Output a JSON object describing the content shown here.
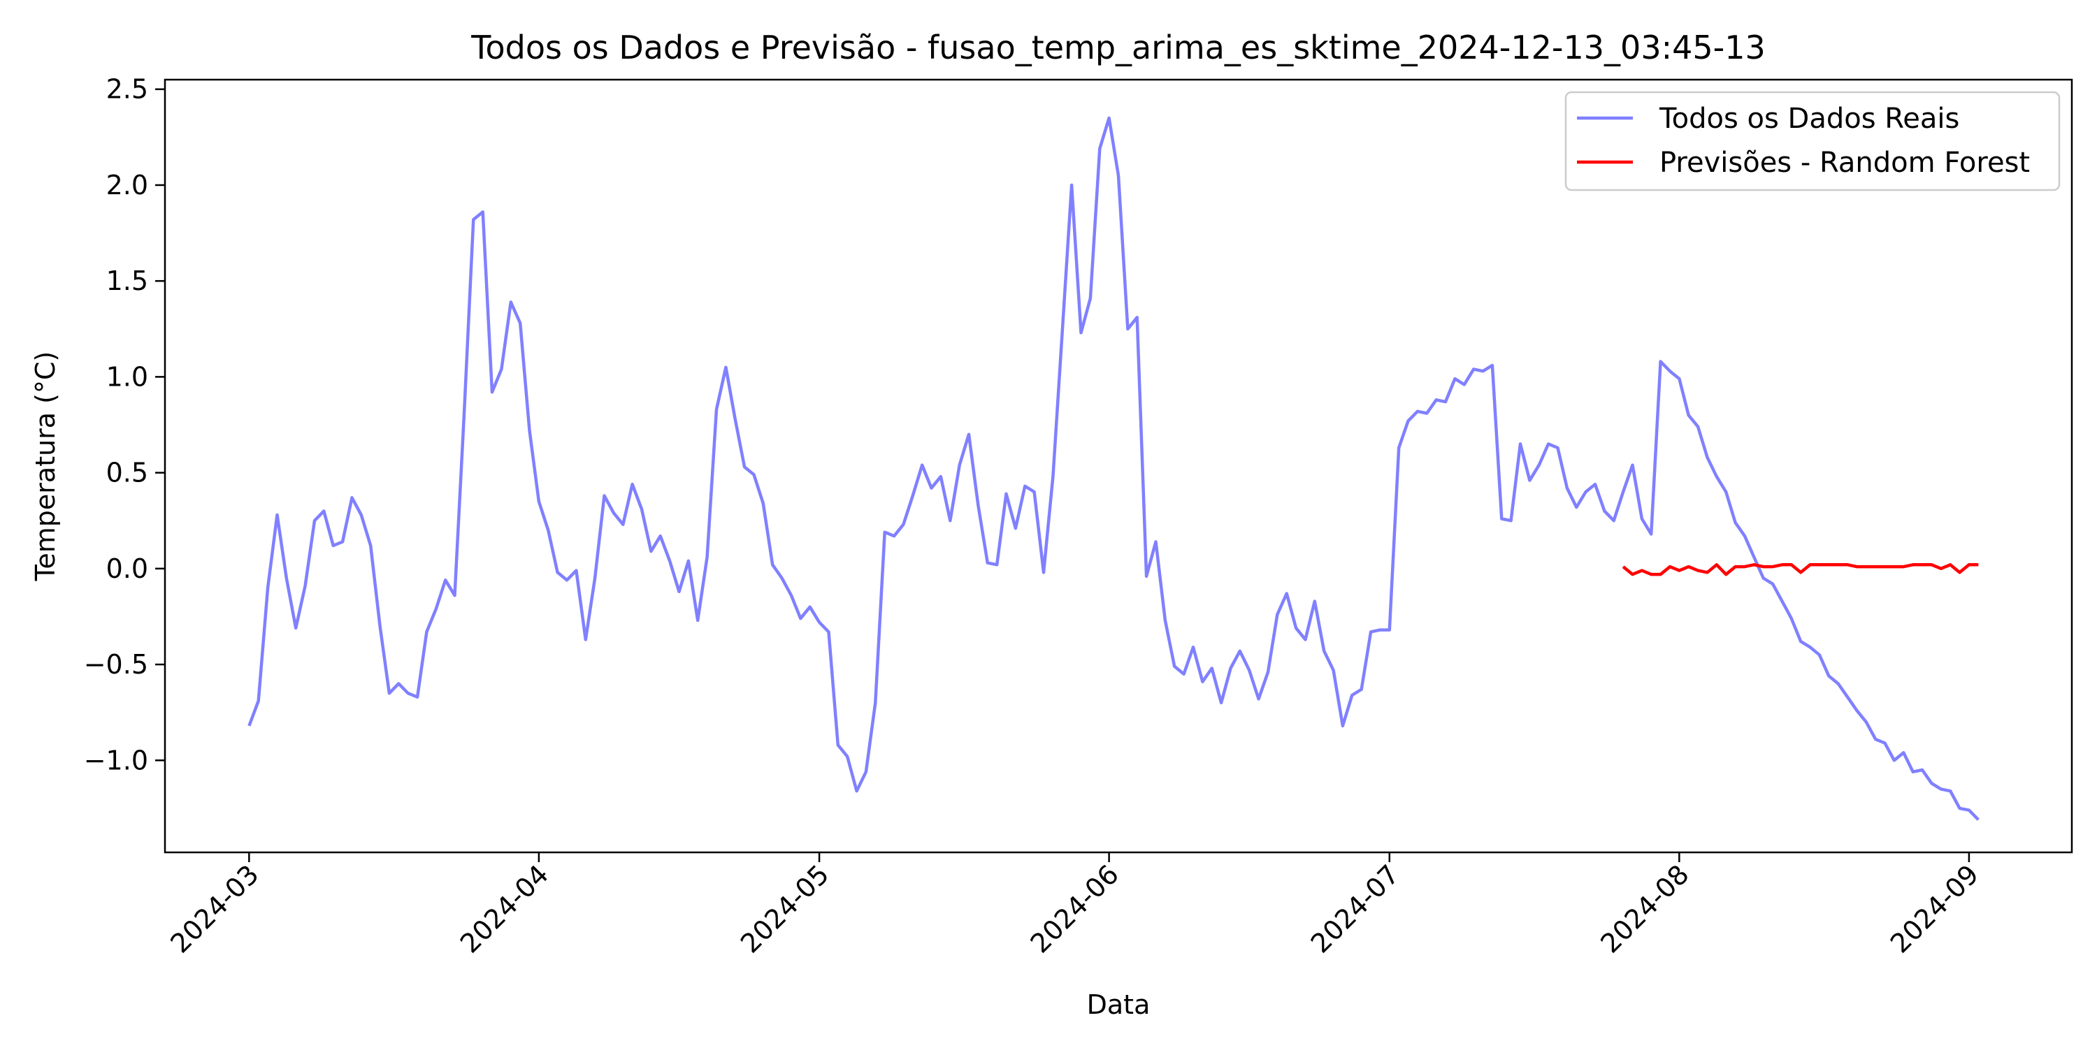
{
  "chart_data": {
    "type": "line",
    "title": "Todos os Dados e Previsão - fusao_temp_arima_es_sktime_2024-12-13_03:45-13",
    "xlabel": "Data",
    "ylabel": "Temperatura (°C)",
    "xlim": [
      "2024-02-21",
      "2024-09-12"
    ],
    "ylim": [
      -1.48,
      2.55
    ],
    "x_ticks": [
      "2024-03",
      "2024-04",
      "2024-05",
      "2024-06",
      "2024-07",
      "2024-08",
      "2024-09"
    ],
    "y_ticks": [
      {
        "value": -1.0,
        "label": "−1.0"
      },
      {
        "value": -0.5,
        "label": "−0.5"
      },
      {
        "value": 0.0,
        "label": "0.0"
      },
      {
        "value": 0.5,
        "label": "0.5"
      },
      {
        "value": 1.0,
        "label": "1.0"
      },
      {
        "value": 1.5,
        "label": "1.5"
      },
      {
        "value": 2.0,
        "label": "2.0"
      },
      {
        "value": 2.5,
        "label": "2.5"
      }
    ],
    "grid": false,
    "legend_position": "top-right",
    "series": [
      {
        "name": "Todos os Dados Reais",
        "color": "#8080ff",
        "points": [
          [
            "2024-03-01",
            -0.82
          ],
          [
            "2024-03-02",
            -0.69
          ],
          [
            "2024-03-03",
            -0.1
          ],
          [
            "2024-03-04",
            0.28
          ],
          [
            "2024-03-05",
            -0.05
          ],
          [
            "2024-03-06",
            -0.31
          ],
          [
            "2024-03-07",
            -0.09
          ],
          [
            "2024-03-08",
            0.25
          ],
          [
            "2024-03-09",
            0.3
          ],
          [
            "2024-03-10",
            0.12
          ],
          [
            "2024-03-11",
            0.14
          ],
          [
            "2024-03-12",
            0.37
          ],
          [
            "2024-03-13",
            0.28
          ],
          [
            "2024-03-14",
            0.12
          ],
          [
            "2024-03-15",
            -0.3
          ],
          [
            "2024-03-16",
            -0.65
          ],
          [
            "2024-03-17",
            -0.6
          ],
          [
            "2024-03-18",
            -0.65
          ],
          [
            "2024-03-19",
            -0.67
          ],
          [
            "2024-03-20",
            -0.33
          ],
          [
            "2024-03-21",
            -0.21
          ],
          [
            "2024-03-22",
            -0.06
          ],
          [
            "2024-03-23",
            -0.14
          ],
          [
            "2024-03-24",
            0.8
          ],
          [
            "2024-03-25",
            1.82
          ],
          [
            "2024-03-26",
            1.86
          ],
          [
            "2024-03-27",
            0.92
          ],
          [
            "2024-03-28",
            1.04
          ],
          [
            "2024-03-29",
            1.39
          ],
          [
            "2024-03-30",
            1.28
          ],
          [
            "2024-03-31",
            0.72
          ],
          [
            "2024-04-01",
            0.35
          ],
          [
            "2024-04-02",
            0.2
          ],
          [
            "2024-04-03",
            -0.02
          ],
          [
            "2024-04-04",
            -0.06
          ],
          [
            "2024-04-05",
            -0.01
          ],
          [
            "2024-04-06",
            -0.37
          ],
          [
            "2024-04-07",
            -0.05
          ],
          [
            "2024-04-08",
            0.38
          ],
          [
            "2024-04-09",
            0.29
          ],
          [
            "2024-04-10",
            0.23
          ],
          [
            "2024-04-11",
            0.44
          ],
          [
            "2024-04-12",
            0.31
          ],
          [
            "2024-04-13",
            0.09
          ],
          [
            "2024-04-14",
            0.17
          ],
          [
            "2024-04-15",
            0.04
          ],
          [
            "2024-04-16",
            -0.12
          ],
          [
            "2024-04-17",
            0.04
          ],
          [
            "2024-04-18",
            -0.27
          ],
          [
            "2024-04-19",
            0.06
          ],
          [
            "2024-04-20",
            0.83
          ],
          [
            "2024-04-21",
            1.05
          ],
          [
            "2024-04-22",
            0.78
          ],
          [
            "2024-04-23",
            0.53
          ],
          [
            "2024-04-24",
            0.49
          ],
          [
            "2024-04-25",
            0.34
          ],
          [
            "2024-04-26",
            0.02
          ],
          [
            "2024-04-27",
            -0.05
          ],
          [
            "2024-04-28",
            -0.14
          ],
          [
            "2024-04-29",
            -0.26
          ],
          [
            "2024-04-30",
            -0.2
          ],
          [
            "2024-05-01",
            -0.28
          ],
          [
            "2024-05-02",
            -0.33
          ],
          [
            "2024-05-03",
            -0.92
          ],
          [
            "2024-05-04",
            -0.98
          ],
          [
            "2024-05-05",
            -1.16
          ],
          [
            "2024-05-06",
            -1.06
          ],
          [
            "2024-05-07",
            -0.7
          ],
          [
            "2024-05-08",
            0.19
          ],
          [
            "2024-05-09",
            0.17
          ],
          [
            "2024-05-10",
            0.23
          ],
          [
            "2024-05-11",
            0.38
          ],
          [
            "2024-05-12",
            0.54
          ],
          [
            "2024-05-13",
            0.42
          ],
          [
            "2024-05-14",
            0.48
          ],
          [
            "2024-05-15",
            0.25
          ],
          [
            "2024-05-16",
            0.54
          ],
          [
            "2024-05-17",
            0.7
          ],
          [
            "2024-05-18",
            0.33
          ],
          [
            "2024-05-19",
            0.03
          ],
          [
            "2024-05-20",
            0.02
          ],
          [
            "2024-05-21",
            0.39
          ],
          [
            "2024-05-22",
            0.21
          ],
          [
            "2024-05-23",
            0.43
          ],
          [
            "2024-05-24",
            0.4
          ],
          [
            "2024-05-25",
            -0.02
          ],
          [
            "2024-05-26",
            0.48
          ],
          [
            "2024-05-27",
            1.24
          ],
          [
            "2024-05-28",
            2.0
          ],
          [
            "2024-05-29",
            1.23
          ],
          [
            "2024-05-30",
            1.41
          ],
          [
            "2024-05-31",
            2.19
          ],
          [
            "2024-06-01",
            2.35
          ],
          [
            "2024-06-02",
            2.05
          ],
          [
            "2024-06-03",
            1.25
          ],
          [
            "2024-06-04",
            1.31
          ],
          [
            "2024-06-05",
            -0.04
          ],
          [
            "2024-06-06",
            0.14
          ],
          [
            "2024-06-07",
            -0.27
          ],
          [
            "2024-06-08",
            -0.51
          ],
          [
            "2024-06-09",
            -0.55
          ],
          [
            "2024-06-10",
            -0.41
          ],
          [
            "2024-06-11",
            -0.59
          ],
          [
            "2024-06-12",
            -0.52
          ],
          [
            "2024-06-13",
            -0.7
          ],
          [
            "2024-06-14",
            -0.52
          ],
          [
            "2024-06-15",
            -0.43
          ],
          [
            "2024-06-16",
            -0.53
          ],
          [
            "2024-06-17",
            -0.68
          ],
          [
            "2024-06-18",
            -0.54
          ],
          [
            "2024-06-19",
            -0.24
          ],
          [
            "2024-06-20",
            -0.13
          ],
          [
            "2024-06-21",
            -0.31
          ],
          [
            "2024-06-22",
            -0.37
          ],
          [
            "2024-06-23",
            -0.17
          ],
          [
            "2024-06-24",
            -0.43
          ],
          [
            "2024-06-25",
            -0.53
          ],
          [
            "2024-06-26",
            -0.82
          ],
          [
            "2024-06-27",
            -0.66
          ],
          [
            "2024-06-28",
            -0.63
          ],
          [
            "2024-06-29",
            -0.33
          ],
          [
            "2024-06-30",
            -0.32
          ],
          [
            "2024-07-01",
            -0.32
          ],
          [
            "2024-07-02",
            0.63
          ],
          [
            "2024-07-03",
            0.77
          ],
          [
            "2024-07-04",
            0.82
          ],
          [
            "2024-07-05",
            0.81
          ],
          [
            "2024-07-06",
            0.88
          ],
          [
            "2024-07-07",
            0.87
          ],
          [
            "2024-07-08",
            0.99
          ],
          [
            "2024-07-09",
            0.96
          ],
          [
            "2024-07-10",
            1.04
          ],
          [
            "2024-07-11",
            1.03
          ],
          [
            "2024-07-12",
            1.06
          ],
          [
            "2024-07-13",
            0.26
          ],
          [
            "2024-07-14",
            0.25
          ],
          [
            "2024-07-15",
            0.65
          ],
          [
            "2024-07-16",
            0.46
          ],
          [
            "2024-07-17",
            0.54
          ],
          [
            "2024-07-18",
            0.65
          ],
          [
            "2024-07-19",
            0.63
          ],
          [
            "2024-07-20",
            0.42
          ],
          [
            "2024-07-21",
            0.32
          ],
          [
            "2024-07-22",
            0.4
          ],
          [
            "2024-07-23",
            0.44
          ],
          [
            "2024-07-24",
            0.3
          ],
          [
            "2024-07-25",
            0.25
          ],
          [
            "2024-07-26",
            0.4
          ],
          [
            "2024-07-27",
            0.54
          ],
          [
            "2024-07-28",
            0.26
          ],
          [
            "2024-07-29",
            0.18
          ],
          [
            "2024-07-30",
            1.08
          ],
          [
            "2024-07-31",
            1.03
          ],
          [
            "2024-08-01",
            0.99
          ],
          [
            "2024-08-02",
            0.8
          ],
          [
            "2024-08-03",
            0.74
          ],
          [
            "2024-08-04",
            0.58
          ],
          [
            "2024-08-05",
            0.48
          ],
          [
            "2024-08-06",
            0.4
          ],
          [
            "2024-08-07",
            0.24
          ],
          [
            "2024-08-08",
            0.17
          ],
          [
            "2024-08-09",
            0.06
          ],
          [
            "2024-08-10",
            -0.05
          ],
          [
            "2024-08-11",
            -0.08
          ],
          [
            "2024-08-12",
            -0.17
          ],
          [
            "2024-08-13",
            -0.26
          ],
          [
            "2024-08-14",
            -0.38
          ],
          [
            "2024-08-15",
            -0.41
          ],
          [
            "2024-08-16",
            -0.45
          ],
          [
            "2024-08-17",
            -0.56
          ],
          [
            "2024-08-18",
            -0.6
          ],
          [
            "2024-08-19",
            -0.67
          ],
          [
            "2024-08-20",
            -0.74
          ],
          [
            "2024-08-21",
            -0.8
          ],
          [
            "2024-08-22",
            -0.89
          ],
          [
            "2024-08-23",
            -0.91
          ],
          [
            "2024-08-24",
            -1.0
          ],
          [
            "2024-08-25",
            -0.96
          ],
          [
            "2024-08-26",
            -1.06
          ],
          [
            "2024-08-27",
            -1.05
          ],
          [
            "2024-08-28",
            -1.12
          ],
          [
            "2024-08-29",
            -1.15
          ],
          [
            "2024-08-30",
            -1.16
          ],
          [
            "2024-08-31",
            -1.25
          ],
          [
            "2024-09-01",
            -1.26
          ],
          [
            "2024-09-02",
            -1.31
          ]
        ]
      },
      {
        "name": "Previsões - Random Forest",
        "color": "#ff0000",
        "points": [
          [
            "2024-07-26",
            0.01
          ],
          [
            "2024-07-27",
            -0.03
          ],
          [
            "2024-07-28",
            -0.01
          ],
          [
            "2024-07-29",
            -0.03
          ],
          [
            "2024-07-30",
            -0.03
          ],
          [
            "2024-07-31",
            0.01
          ],
          [
            "2024-08-01",
            -0.01
          ],
          [
            "2024-08-02",
            0.01
          ],
          [
            "2024-08-03",
            -0.01
          ],
          [
            "2024-08-04",
            -0.02
          ],
          [
            "2024-08-05",
            0.02
          ],
          [
            "2024-08-06",
            -0.03
          ],
          [
            "2024-08-07",
            0.01
          ],
          [
            "2024-08-08",
            0.01
          ],
          [
            "2024-08-09",
            0.02
          ],
          [
            "2024-08-10",
            0.01
          ],
          [
            "2024-08-11",
            0.01
          ],
          [
            "2024-08-12",
            0.02
          ],
          [
            "2024-08-13",
            0.02
          ],
          [
            "2024-08-14",
            -0.02
          ],
          [
            "2024-08-15",
            0.02
          ],
          [
            "2024-08-16",
            0.02
          ],
          [
            "2024-08-17",
            0.02
          ],
          [
            "2024-08-18",
            0.02
          ],
          [
            "2024-08-19",
            0.02
          ],
          [
            "2024-08-20",
            0.01
          ],
          [
            "2024-08-21",
            0.01
          ],
          [
            "2024-08-22",
            0.01
          ],
          [
            "2024-08-23",
            0.01
          ],
          [
            "2024-08-24",
            0.01
          ],
          [
            "2024-08-25",
            0.01
          ],
          [
            "2024-08-26",
            0.02
          ],
          [
            "2024-08-27",
            0.02
          ],
          [
            "2024-08-28",
            0.02
          ],
          [
            "2024-08-29",
            0.0
          ],
          [
            "2024-08-30",
            0.02
          ],
          [
            "2024-08-31",
            -0.02
          ],
          [
            "2024-09-01",
            0.02
          ],
          [
            "2024-09-02",
            0.02
          ]
        ]
      }
    ]
  }
}
